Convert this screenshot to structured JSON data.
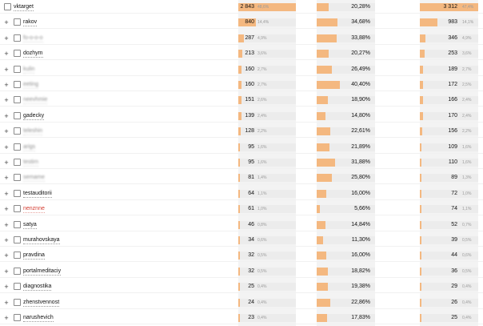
{
  "accent_color": "#f4b880",
  "track_color": "#ececec",
  "rows": [
    {
      "name": "vktarget",
      "level": 0,
      "style": "normal",
      "expandable": false,
      "v1": "2 843",
      "p1": "48,6%",
      "f1": 1.0,
      "rate": "20,28%",
      "f2": 0.2,
      "v3": "3 312",
      "p3": "47,4%",
      "f3": 1.0
    },
    {
      "name": "rakov",
      "level": 1,
      "style": "normal",
      "expandable": true,
      "v1": "840",
      "p1": "14,4%",
      "f1": 0.3,
      "rate": "34,68%",
      "f2": 0.35,
      "v3": "983",
      "p3": "14,1%",
      "f3": 0.3
    },
    {
      "name": "fo-o-o-o",
      "level": 1,
      "style": "blur",
      "expandable": true,
      "v1": "287",
      "p1": "4,9%",
      "f1": 0.1,
      "rate": "33,88%",
      "f2": 0.34,
      "v3": "346",
      "p3": "4,9%",
      "f3": 0.1
    },
    {
      "name": "dozhym",
      "level": 1,
      "style": "normal",
      "expandable": true,
      "v1": "213",
      "p1": "3,6%",
      "f1": 0.075,
      "rate": "20,27%",
      "f2": 0.2,
      "v3": "253",
      "p3": "3,6%",
      "f3": 0.076
    },
    {
      "name": "kulin",
      "level": 1,
      "style": "blur",
      "expandable": true,
      "v1": "160",
      "p1": "2,7%",
      "f1": 0.056,
      "rate": "26,49%",
      "f2": 0.26,
      "v3": "189",
      "p3": "2,7%",
      "f3": 0.057
    },
    {
      "name": "eeting",
      "level": 1,
      "style": "blur",
      "expandable": true,
      "v1": "160",
      "p1": "2,7%",
      "f1": 0.056,
      "rate": "40,40%",
      "f2": 0.4,
      "v3": "172",
      "p3": "2,5%",
      "f3": 0.052
    },
    {
      "name": "neevhmie",
      "level": 1,
      "style": "blur",
      "expandable": true,
      "v1": "151",
      "p1": "2,6%",
      "f1": 0.053,
      "rate": "18,90%",
      "f2": 0.19,
      "v3": "166",
      "p3": "2,4%",
      "f3": 0.05
    },
    {
      "name": "gadecky",
      "level": 1,
      "style": "normal",
      "expandable": true,
      "v1": "139",
      "p1": "2,4%",
      "f1": 0.049,
      "rate": "14,80%",
      "f2": 0.15,
      "v3": "170",
      "p3": "2,4%",
      "f3": 0.051
    },
    {
      "name": "teleshin",
      "level": 1,
      "style": "blur",
      "expandable": true,
      "v1": "128",
      "p1": "2,2%",
      "f1": 0.045,
      "rate": "22,61%",
      "f2": 0.23,
      "v3": "156",
      "p3": "2,2%",
      "f3": 0.047
    },
    {
      "name": "arigs",
      "level": 1,
      "style": "blur",
      "expandable": true,
      "v1": "95",
      "p1": "1,6%",
      "f1": 0.033,
      "rate": "21,89%",
      "f2": 0.22,
      "v3": "109",
      "p3": "1,6%",
      "f3": 0.033
    },
    {
      "name": "testirn",
      "level": 1,
      "style": "blur",
      "expandable": true,
      "v1": "95",
      "p1": "1,6%",
      "f1": 0.033,
      "rate": "31,88%",
      "f2": 0.32,
      "v3": "110",
      "p3": "1,6%",
      "f3": 0.033
    },
    {
      "name": "semame",
      "level": 1,
      "style": "blur",
      "expandable": true,
      "v1": "81",
      "p1": "1,4%",
      "f1": 0.028,
      "rate": "25,80%",
      "f2": 0.26,
      "v3": "89",
      "p3": "1,3%",
      "f3": 0.027
    },
    {
      "name": "testauditorii",
      "level": 1,
      "style": "normal",
      "expandable": true,
      "v1": "64",
      "p1": "1,1%",
      "f1": 0.022,
      "rate": "16,00%",
      "f2": 0.16,
      "v3": "72",
      "p3": "1,0%",
      "f3": 0.022
    },
    {
      "name": "nenznne",
      "level": 1,
      "style": "red",
      "expandable": true,
      "v1": "61",
      "p1": "1,0%",
      "f1": 0.021,
      "rate": "5,66%",
      "f2": 0.057,
      "v3": "74",
      "p3": "1,1%",
      "f3": 0.022
    },
    {
      "name": "satya",
      "level": 1,
      "style": "normal",
      "expandable": true,
      "v1": "46",
      "p1": "0,8%",
      "f1": 0.016,
      "rate": "14,84%",
      "f2": 0.15,
      "v3": "52",
      "p3": "0,7%",
      "f3": 0.016
    },
    {
      "name": "murahovskaya",
      "level": 1,
      "style": "normal",
      "expandable": true,
      "v1": "34",
      "p1": "0,6%",
      "f1": 0.012,
      "rate": "11,30%",
      "f2": 0.11,
      "v3": "39",
      "p3": "0,5%",
      "f3": 0.012
    },
    {
      "name": "pravdina",
      "level": 1,
      "style": "normal",
      "expandable": true,
      "v1": "32",
      "p1": "0,5%",
      "f1": 0.011,
      "rate": "16,00%",
      "f2": 0.16,
      "v3": "44",
      "p3": "0,6%",
      "f3": 0.013
    },
    {
      "name": "portalmeditaciy",
      "level": 1,
      "style": "normal",
      "expandable": true,
      "v1": "32",
      "p1": "0,5%",
      "f1": 0.011,
      "rate": "18,82%",
      "f2": 0.19,
      "v3": "36",
      "p3": "0,5%",
      "f3": 0.011
    },
    {
      "name": "diagnostika",
      "level": 1,
      "style": "normal",
      "expandable": true,
      "v1": "25",
      "p1": "0,4%",
      "f1": 0.009,
      "rate": "19,38%",
      "f2": 0.19,
      "v3": "29",
      "p3": "0,4%",
      "f3": 0.009
    },
    {
      "name": "zhenstvennost",
      "level": 1,
      "style": "normal",
      "expandable": true,
      "v1": "24",
      "p1": "0,4%",
      "f1": 0.008,
      "rate": "22,86%",
      "f2": 0.23,
      "v3": "26",
      "p3": "0,4%",
      "f3": 0.008
    },
    {
      "name": "narushevich",
      "level": 1,
      "style": "normal",
      "expandable": true,
      "v1": "23",
      "p1": "0,4%",
      "f1": 0.008,
      "rate": "17,83%",
      "f2": 0.18,
      "v3": "25",
      "p3": "0,4%",
      "f3": 0.008
    }
  ]
}
